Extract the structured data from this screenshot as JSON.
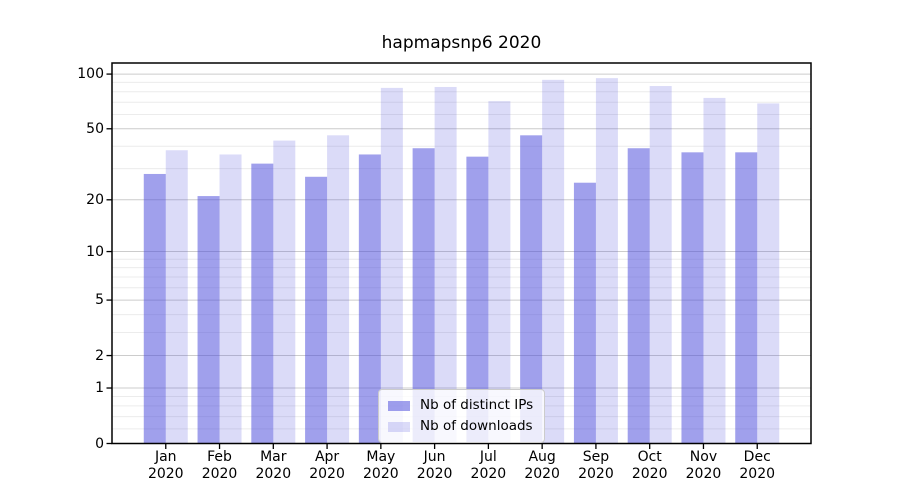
{
  "title": "hapmapsnp6 2020",
  "chart_data": {
    "type": "bar",
    "title": "hapmapsnp6 2020",
    "categories": [
      "Jan",
      "Feb",
      "Mar",
      "Apr",
      "May",
      "Jun",
      "Jul",
      "Aug",
      "Sep",
      "Oct",
      "Nov",
      "Dec"
    ],
    "year": "2020",
    "series": [
      {
        "name": "Nb of distinct IPs",
        "color": "rgba(75,75,220,0.53)",
        "values": [
          28,
          21,
          32,
          27,
          36,
          39,
          35,
          46,
          25,
          39,
          37,
          37
        ]
      },
      {
        "name": "Nb of downloads",
        "color": "rgba(75,75,220,0.2)",
        "values": [
          38,
          36,
          43,
          46,
          84,
          85,
          71,
          93,
          95,
          86,
          74,
          69
        ]
      }
    ],
    "yscale": "log1p",
    "ylim": [
      0,
      115
    ],
    "yticks": [
      100,
      50,
      20,
      10,
      5,
      2,
      1,
      0
    ],
    "yticks_minor": [
      0.2,
      0.4,
      0.6,
      0.8,
      3,
      4,
      6,
      7,
      8,
      9,
      30,
      40,
      60,
      70,
      80,
      90
    ],
    "xlabel": "",
    "ylabel": "",
    "grid": true,
    "legend_position": "lower center",
    "colors": {
      "grid_major": "#cccccc",
      "grid_minor": "#ececec",
      "spine": "#000000",
      "legend_border": "#cccccc",
      "background": "#ffffff"
    }
  }
}
